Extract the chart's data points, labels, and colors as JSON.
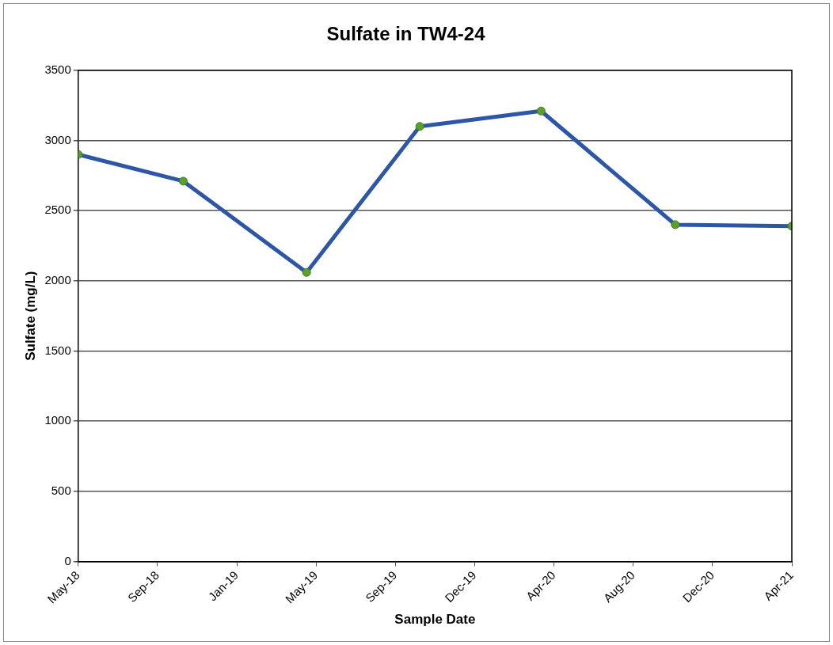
{
  "chart_data": {
    "type": "line",
    "title": "Sulfate in TW4-24",
    "xlabel": "Sample Date",
    "ylabel": "Sulfate (mg/L)",
    "x": [
      "2018-05-22",
      "2018-10-24",
      "2019-04-24",
      "2019-10-08",
      "2020-04-04",
      "2020-10-19",
      "2021-04-09"
    ],
    "series": [
      {
        "color": "#2e56a6",
        "values": [
          2900,
          2710,
          2060,
          3100,
          3210,
          2400,
          2390
        ]
      }
    ],
    "marker": "circle",
    "line_style": "solid",
    "xlim": [
      "2018-05-22",
      "2021-04-09"
    ],
    "xticks": [
      {
        "value": "2018-05-22",
        "label": "May-18"
      },
      {
        "value": "2018-09-16",
        "label": "Sep-18"
      },
      {
        "value": "2019-01-11",
        "label": "Jan-19"
      },
      {
        "value": "2019-05-08",
        "label": "May-19"
      },
      {
        "value": "2019-09-02",
        "label": "Sep-19"
      },
      {
        "value": "2019-12-28",
        "label": "Dec-19"
      },
      {
        "value": "2020-04-23",
        "label": "Apr-20"
      },
      {
        "value": "2020-08-18",
        "label": "Aug-20"
      },
      {
        "value": "2020-12-13",
        "label": "Dec-20"
      },
      {
        "value": "2021-04-09",
        "label": "Apr-21"
      }
    ],
    "ylim": [
      0,
      3500
    ],
    "yticks": [
      0,
      500,
      1000,
      1500,
      2000,
      2500,
      3000,
      3500
    ],
    "grid": "y",
    "legend": false
  }
}
